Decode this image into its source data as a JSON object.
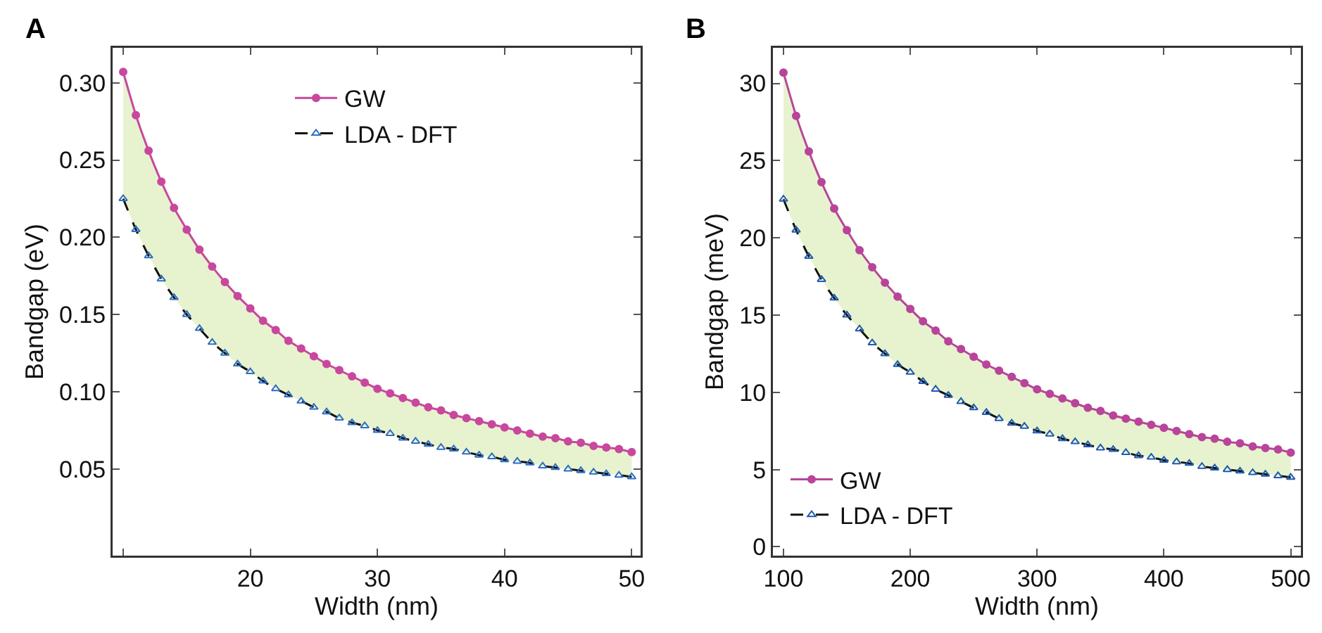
{
  "chart_data": [
    {
      "type": "line",
      "annotations": [
        "A"
      ],
      "xlabel": "Width (nm)",
      "ylabel": "Bandgap (eV)",
      "xlim": [
        9.17,
        50.7
      ],
      "xticks": [
        {
          "value": 10,
          "label": null
        },
        20,
        30,
        40,
        50
      ],
      "ylim": [
        -0.006,
        0.3226
      ],
      "yticks": [
        0.05,
        {
          "value": 0.1,
          "label": "0.10"
        },
        0.15,
        {
          "value": 0.2,
          "label": "0.20"
        },
        0.25,
        {
          "value": 0.3,
          "label": "0.30"
        }
      ],
      "grid": false,
      "legend": "top",
      "x": [
        10,
        11,
        12,
        13,
        14,
        15,
        16,
        17,
        18,
        19,
        20,
        21,
        22,
        23,
        24,
        25,
        26,
        27,
        28,
        29,
        30,
        31,
        32,
        33,
        34,
        35,
        36,
        37,
        38,
        39,
        40,
        41,
        42,
        43,
        44,
        45,
        46,
        47,
        48,
        49,
        50
      ],
      "series": [
        {
          "name": "GW",
          "color": "#c8489e",
          "marker": "circle",
          "line_style": "solid",
          "values": [
            0.307,
            0.279,
            0.256,
            0.236,
            0.219,
            0.205,
            0.192,
            0.181,
            0.171,
            0.162,
            0.154,
            0.146,
            0.14,
            0.133,
            0.128,
            0.123,
            0.118,
            0.114,
            0.11,
            0.106,
            0.102,
            0.099,
            0.096,
            0.093,
            0.09,
            0.088,
            0.085,
            0.083,
            0.081,
            0.079,
            0.077,
            0.075,
            0.073,
            0.071,
            0.07,
            0.068,
            0.067,
            0.065,
            0.064,
            0.063,
            0.061
          ],
          "lower": [
            0.225,
            0.205,
            0.188,
            0.173,
            0.161,
            0.15,
            0.141,
            0.132,
            0.125,
            0.118,
            0.113,
            0.107,
            0.102,
            0.098,
            0.094,
            0.09,
            0.087,
            0.083,
            0.08,
            0.078,
            0.075,
            0.073,
            0.07,
            0.068,
            0.066,
            0.064,
            0.063,
            0.061,
            0.059,
            0.058,
            0.056,
            0.055,
            0.054,
            0.052,
            0.051,
            0.05,
            0.049,
            0.048,
            0.047,
            0.046,
            0.045
          ],
          "upper": [
            0.307,
            0.279,
            0.256,
            0.236,
            0.219,
            0.205,
            0.192,
            0.181,
            0.171,
            0.162,
            0.154,
            0.146,
            0.14,
            0.133,
            0.128,
            0.123,
            0.118,
            0.114,
            0.11,
            0.106,
            0.102,
            0.099,
            0.096,
            0.093,
            0.09,
            0.088,
            0.085,
            0.083,
            0.081,
            0.079,
            0.077,
            0.075,
            0.073,
            0.071,
            0.07,
            0.068,
            0.067,
            0.065,
            0.064,
            0.063,
            0.061
          ]
        },
        {
          "name": "LDA - DFT",
          "color": "#2f6fc0",
          "marker": "triangle",
          "line_style": "dashed",
          "values": [
            0.225,
            0.205,
            0.188,
            0.173,
            0.161,
            0.15,
            0.141,
            0.132,
            0.125,
            0.118,
            0.113,
            0.107,
            0.102,
            0.098,
            0.094,
            0.09,
            0.087,
            0.083,
            0.08,
            0.078,
            0.075,
            0.073,
            0.07,
            0.068,
            0.066,
            0.064,
            0.063,
            0.061,
            0.059,
            0.058,
            0.056,
            0.055,
            0.054,
            0.052,
            0.051,
            0.05,
            0.049,
            0.048,
            0.047,
            0.046,
            0.045
          ]
        }
      ]
    },
    {
      "type": "line",
      "annotations": [
        "B"
      ],
      "xlabel": "Width (nm)",
      "ylabel": "Bandgap (meV)",
      "xlim": [
        91.7,
        508
      ],
      "xticks": [
        100,
        200,
        300,
        400,
        500
      ],
      "ylim": [
        -0.57,
        32.3
      ],
      "yticks": [
        0,
        5,
        10,
        15,
        20,
        25,
        30
      ],
      "grid": false,
      "legend": "bottom left",
      "x": [
        100,
        110,
        120,
        130,
        140,
        150,
        160,
        170,
        180,
        190,
        200,
        210,
        220,
        230,
        240,
        250,
        260,
        270,
        280,
        290,
        300,
        310,
        320,
        330,
        340,
        350,
        360,
        370,
        380,
        390,
        400,
        410,
        420,
        430,
        440,
        450,
        460,
        470,
        480,
        490,
        500
      ],
      "series": [
        {
          "name": "GW",
          "color": "#b8459a",
          "marker": "circle",
          "line_style": "solid",
          "values": [
            30.7,
            27.9,
            25.6,
            23.6,
            21.9,
            20.5,
            19.2,
            18.1,
            17.1,
            16.2,
            15.4,
            14.6,
            14.0,
            13.3,
            12.8,
            12.3,
            11.8,
            11.4,
            11.0,
            10.6,
            10.2,
            9.9,
            9.6,
            9.3,
            9.0,
            8.8,
            8.5,
            8.3,
            8.1,
            7.9,
            7.7,
            7.5,
            7.3,
            7.1,
            7.0,
            6.8,
            6.7,
            6.5,
            6.4,
            6.3,
            6.1
          ],
          "lower": [
            22.5,
            20.5,
            18.8,
            17.3,
            16.1,
            15.0,
            14.1,
            13.2,
            12.5,
            11.8,
            11.3,
            10.7,
            10.2,
            9.8,
            9.4,
            9.0,
            8.7,
            8.3,
            8.0,
            7.8,
            7.5,
            7.3,
            7.0,
            6.8,
            6.6,
            6.4,
            6.3,
            6.1,
            5.9,
            5.8,
            5.6,
            5.5,
            5.4,
            5.2,
            5.1,
            5.0,
            4.9,
            4.8,
            4.7,
            4.6,
            4.5
          ],
          "upper": [
            30.7,
            27.9,
            25.6,
            23.6,
            21.9,
            20.5,
            19.2,
            18.1,
            17.1,
            16.2,
            15.4,
            14.6,
            14.0,
            13.3,
            12.8,
            12.3,
            11.8,
            11.4,
            11.0,
            10.6,
            10.2,
            9.9,
            9.6,
            9.3,
            9.0,
            8.8,
            8.5,
            8.3,
            8.1,
            7.9,
            7.7,
            7.5,
            7.3,
            7.1,
            7.0,
            6.8,
            6.7,
            6.5,
            6.4,
            6.3,
            6.1
          ]
        },
        {
          "name": "LDA - DFT",
          "color": "#1f5aae",
          "marker": "triangle",
          "line_style": "dashed",
          "values": [
            22.5,
            20.5,
            18.8,
            17.3,
            16.1,
            15.0,
            14.1,
            13.2,
            12.5,
            11.8,
            11.3,
            10.7,
            10.2,
            9.8,
            9.4,
            9.0,
            8.7,
            8.3,
            8.0,
            7.8,
            7.5,
            7.3,
            7.0,
            6.8,
            6.6,
            6.4,
            6.3,
            6.1,
            5.9,
            5.8,
            5.6,
            5.5,
            5.4,
            5.2,
            5.1,
            5.0,
            4.9,
            4.8,
            4.7,
            4.6,
            4.5
          ]
        }
      ]
    }
  ]
}
